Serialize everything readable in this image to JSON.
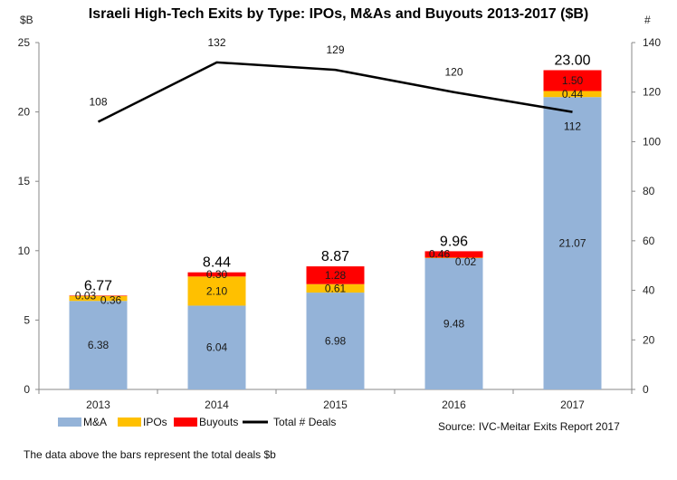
{
  "chart_data": {
    "type": "bar",
    "title": "Israeli High-Tech Exits by Type: IPOs, M&As and Buyouts 2013-2017 ($B)",
    "left_axis_unit": "$B",
    "right_axis_unit": "#",
    "categories": [
      "2013",
      "2014",
      "2015",
      "2016",
      "2017"
    ],
    "ylim": [
      0,
      25
    ],
    "yticks": [
      "0",
      "5",
      "10",
      "15",
      "20",
      "25"
    ],
    "y2lim": [
      0,
      140
    ],
    "y2ticks": [
      "0",
      "20",
      "40",
      "60",
      "80",
      "100",
      "120",
      "140"
    ],
    "series": [
      {
        "name": "M&A",
        "color": "#94b3d8",
        "values": [
          6.38,
          6.04,
          6.98,
          9.48,
          21.07
        ],
        "labels": [
          "6.38",
          "6.04",
          "6.98",
          "9.48",
          "21.07"
        ]
      },
      {
        "name": "IPOs",
        "color": "#ffc000",
        "values": [
          0.36,
          2.1,
          0.61,
          0.02,
          0.44
        ],
        "labels": [
          "0.36",
          "2.10",
          "0.61",
          "0.02",
          "0.44"
        ]
      },
      {
        "name": "Buyouts",
        "color": "#ff0000",
        "values": [
          0.03,
          0.3,
          1.28,
          0.46,
          1.5
        ],
        "labels": [
          "0.03",
          "0.30",
          "1.28",
          "0.46",
          "1.50"
        ]
      }
    ],
    "totals": [
      "6.77",
      "8.44",
      "8.87",
      "9.96",
      "23.00"
    ],
    "line": {
      "name": "Total # Deals",
      "color": "#000000",
      "values": [
        108,
        132,
        129,
        120,
        112
      ],
      "labels": [
        "108",
        "132",
        "129",
        "120",
        "112"
      ]
    },
    "legend": [
      "M&A",
      "IPOs",
      "Buyouts",
      "Total # Deals"
    ],
    "legend_position": "bottom-left",
    "grid": false,
    "source": "Source: IVC-Meitar Exits Report 2017",
    "footnote": "The data above the bars represent the total deals $b"
  }
}
